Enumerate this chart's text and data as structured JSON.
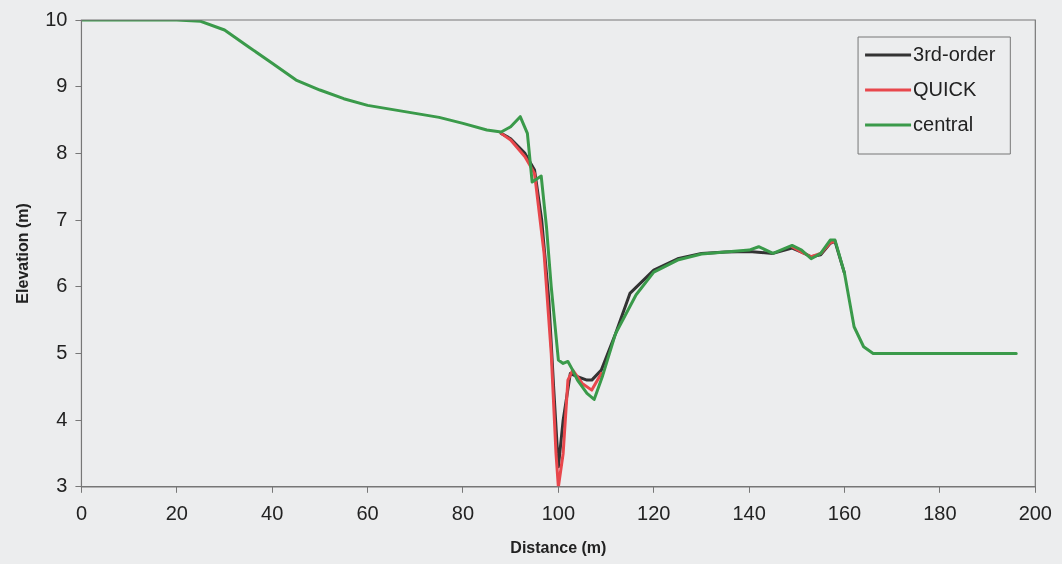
{
  "chart_data": {
    "type": "line",
    "xlabel": "Distance (m)",
    "ylabel": "Elevation (m)",
    "xlim": [
      0,
      200
    ],
    "xticks": [
      0,
      20,
      40,
      60,
      80,
      100,
      120,
      140,
      160,
      180,
      200
    ],
    "ylim": [
      3,
      10
    ],
    "yticks": [
      3,
      4,
      5,
      6,
      7,
      8,
      9,
      10
    ],
    "grid": false,
    "legend": "top right",
    "marker": "none",
    "line_style": "solid",
    "series": [
      {
        "name": "3rd-order",
        "color": "#333333",
        "x": [
          88,
          90,
          93,
          95,
          96.5,
          98,
          99,
          100,
          101,
          102.5,
          104,
          106,
          107,
          109,
          112,
          115,
          120,
          125,
          130,
          135,
          140,
          145,
          149,
          151,
          153,
          155,
          157,
          158,
          160
        ],
        "values": [
          8.3,
          8.22,
          8.0,
          7.75,
          7.0,
          5.8,
          4.5,
          3.3,
          4.0,
          4.7,
          4.65,
          4.6,
          4.6,
          4.75,
          5.3,
          5.9,
          6.25,
          6.42,
          6.5,
          6.52,
          6.53,
          6.5,
          6.58,
          6.52,
          6.45,
          6.48,
          6.65,
          6.68,
          6.2
        ]
      },
      {
        "name": "QUICK",
        "color": "#e8474c",
        "x": [
          88,
          90,
          93,
          95,
          97,
          98.5,
          99.5,
          100,
          101,
          102,
          103,
          105,
          107,
          109,
          112,
          115,
          120,
          125,
          130,
          135,
          140,
          145,
          149,
          151,
          153,
          155,
          157,
          158
        ],
        "values": [
          8.3,
          8.2,
          7.95,
          7.7,
          6.5,
          5.0,
          3.5,
          3.0,
          3.5,
          4.6,
          4.75,
          4.55,
          4.45,
          4.7,
          null,
          null,
          null,
          null,
          null,
          null,
          null,
          null,
          6.6,
          6.52,
          6.45,
          6.5,
          6.66,
          6.68
        ]
      },
      {
        "name": "central",
        "color": "#3a9a4a",
        "x": [
          0,
          10,
          20,
          25,
          30,
          35,
          40,
          45,
          50,
          55,
          60,
          65,
          70,
          75,
          80,
          85,
          88,
          90,
          92,
          93.5,
          94.5,
          96.4,
          97.5,
          98.5,
          100,
          101,
          102,
          103,
          104,
          106,
          107.5,
          109.3,
          112,
          116.3,
          120,
          125,
          130,
          135,
          140,
          142,
          145,
          149,
          151,
          153,
          155,
          157,
          158,
          160,
          162,
          164,
          166,
          170,
          180,
          190,
          196
        ],
        "values": [
          10,
          10,
          10,
          9.98,
          9.85,
          9.6,
          9.35,
          9.1,
          8.95,
          8.82,
          8.72,
          8.66,
          8.6,
          8.54,
          8.45,
          8.35,
          8.32,
          8.4,
          8.55,
          8.3,
          7.57,
          7.66,
          6.9,
          6.0,
          4.9,
          4.85,
          4.88,
          4.75,
          4.6,
          4.4,
          4.31,
          4.67,
          5.3,
          5.88,
          6.22,
          6.4,
          6.49,
          6.52,
          6.55,
          6.6,
          6.5,
          6.62,
          6.55,
          6.42,
          6.5,
          6.7,
          6.7,
          6.2,
          5.4,
          5.1,
          5.0,
          5.0,
          5.0,
          5.0,
          5.0
        ]
      }
    ]
  }
}
